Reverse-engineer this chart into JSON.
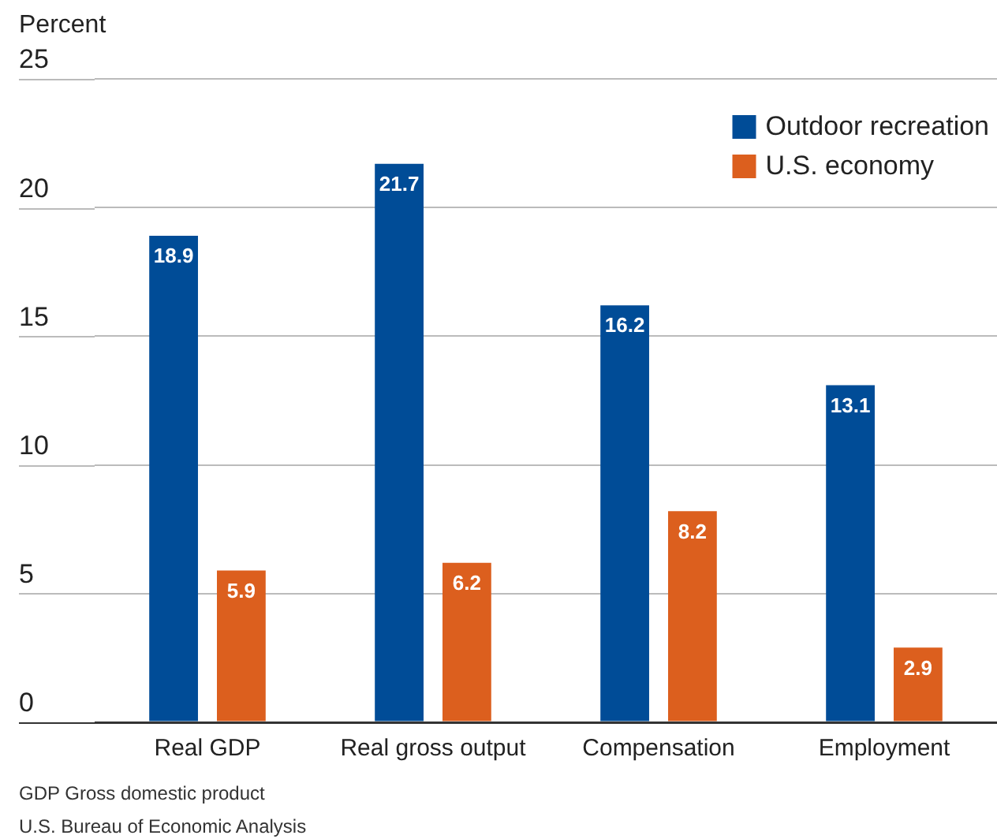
{
  "chart_data": {
    "type": "bar",
    "ylabel": "Percent",
    "categories": [
      "Real GDP",
      "Real gross output",
      "Compensation",
      "Employment"
    ],
    "series": [
      {
        "name": "Outdoor recreation",
        "color": "#004c97",
        "values": [
          18.9,
          21.7,
          16.2,
          13.1
        ]
      },
      {
        "name": "U.S. economy",
        "color": "#dc5f1e",
        "values": [
          5.9,
          6.2,
          8.2,
          2.9
        ]
      }
    ],
    "ylim": [
      0,
      25
    ],
    "yticks": [
      0,
      5,
      10,
      15,
      20,
      25
    ],
    "grid": "y",
    "legend": "top right",
    "data_labels": true,
    "annotations": [
      "GDP Gross domestic product",
      "U.S. Bureau of Economic Analysis"
    ]
  }
}
